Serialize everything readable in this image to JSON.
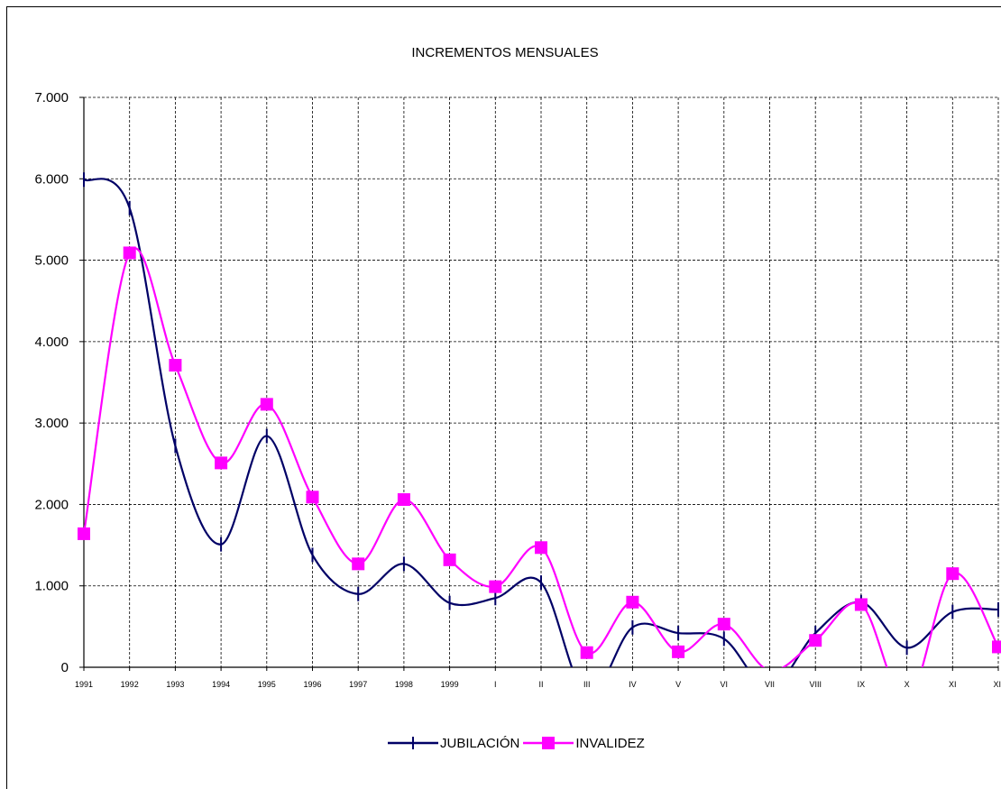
{
  "chart_data": {
    "type": "line",
    "title": "INCREMENTOS MENSUALES",
    "categories": [
      "1991",
      "1992",
      "1993",
      "1994",
      "1995",
      "1996",
      "1997",
      "1998",
      "1999",
      "I",
      "II",
      "III",
      "IV",
      "V",
      "VI",
      "VII",
      "VIII",
      "IX",
      "X",
      "XI",
      "XII"
    ],
    "ylim": [
      0,
      7000
    ],
    "yticks": [
      0,
      1000,
      2000,
      3000,
      4000,
      5000,
      6000,
      7000
    ],
    "ytick_labels": [
      "0",
      "1.000",
      "2.000",
      "3.000",
      "4.000",
      "5.000",
      "6.000",
      "7.000"
    ],
    "grid": true,
    "legend_position": "bottom",
    "series": [
      {
        "name": "JUBILACIÓN",
        "color": "#000066",
        "marker": "cross",
        "values": [
          5990,
          5640,
          2720,
          1510,
          2840,
          1380,
          900,
          1270,
          790,
          850,
          1040,
          -350,
          490,
          420,
          350,
          -260,
          420,
          800,
          240,
          680,
          710
        ]
      },
      {
        "name": "INVALIDEZ",
        "color": "#ff00ff",
        "marker": "square",
        "values": [
          1640,
          5090,
          3710,
          2510,
          3230,
          2090,
          1270,
          2060,
          1320,
          990,
          1470,
          180,
          800,
          190,
          530,
          -40,
          330,
          770,
          -420,
          1150,
          250
        ]
      }
    ]
  }
}
